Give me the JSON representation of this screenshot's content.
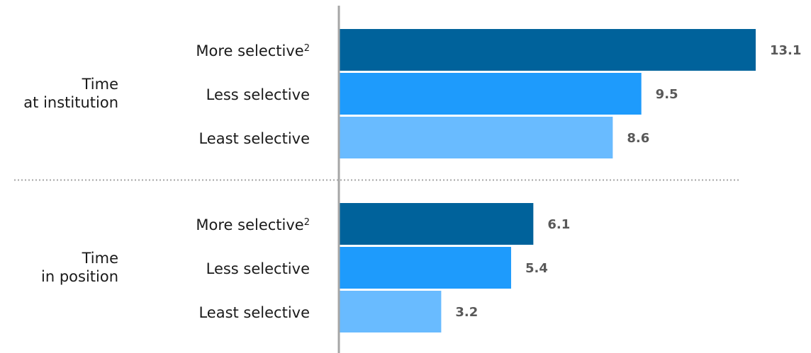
{
  "chart_data": {
    "type": "bar",
    "orientation": "horizontal",
    "groups": [
      {
        "label_lines": [
          "Time",
          "at institution"
        ],
        "bars": [
          {
            "label": "More selective",
            "superscript": "2",
            "value": 13.1,
            "value_label": "13.1",
            "color": "#00629b"
          },
          {
            "label": "Less selective",
            "superscript": "",
            "value": 9.5,
            "value_label": "9.5",
            "color": "#1e9bfc"
          },
          {
            "label": "Least selective",
            "superscript": "",
            "value": 8.6,
            "value_label": "8.6",
            "color": "#69bbff"
          }
        ]
      },
      {
        "label_lines": [
          "Time",
          "in position"
        ],
        "bars": [
          {
            "label": "More selective",
            "superscript": "2",
            "value": 6.1,
            "value_label": "6.1",
            "color": "#00629b"
          },
          {
            "label": "Less selective",
            "superscript": "",
            "value": 5.4,
            "value_label": "5.4",
            "color": "#1e9bfc"
          },
          {
            "label": "Least selective",
            "superscript": "",
            "value": 3.2,
            "value_label": "3.2",
            "color": "#69bbff"
          }
        ]
      }
    ],
    "xlim": [
      0,
      13.1
    ],
    "grid": false,
    "legend": "none",
    "group_separator": "dotted",
    "axis_color": "#a6a6a6"
  }
}
